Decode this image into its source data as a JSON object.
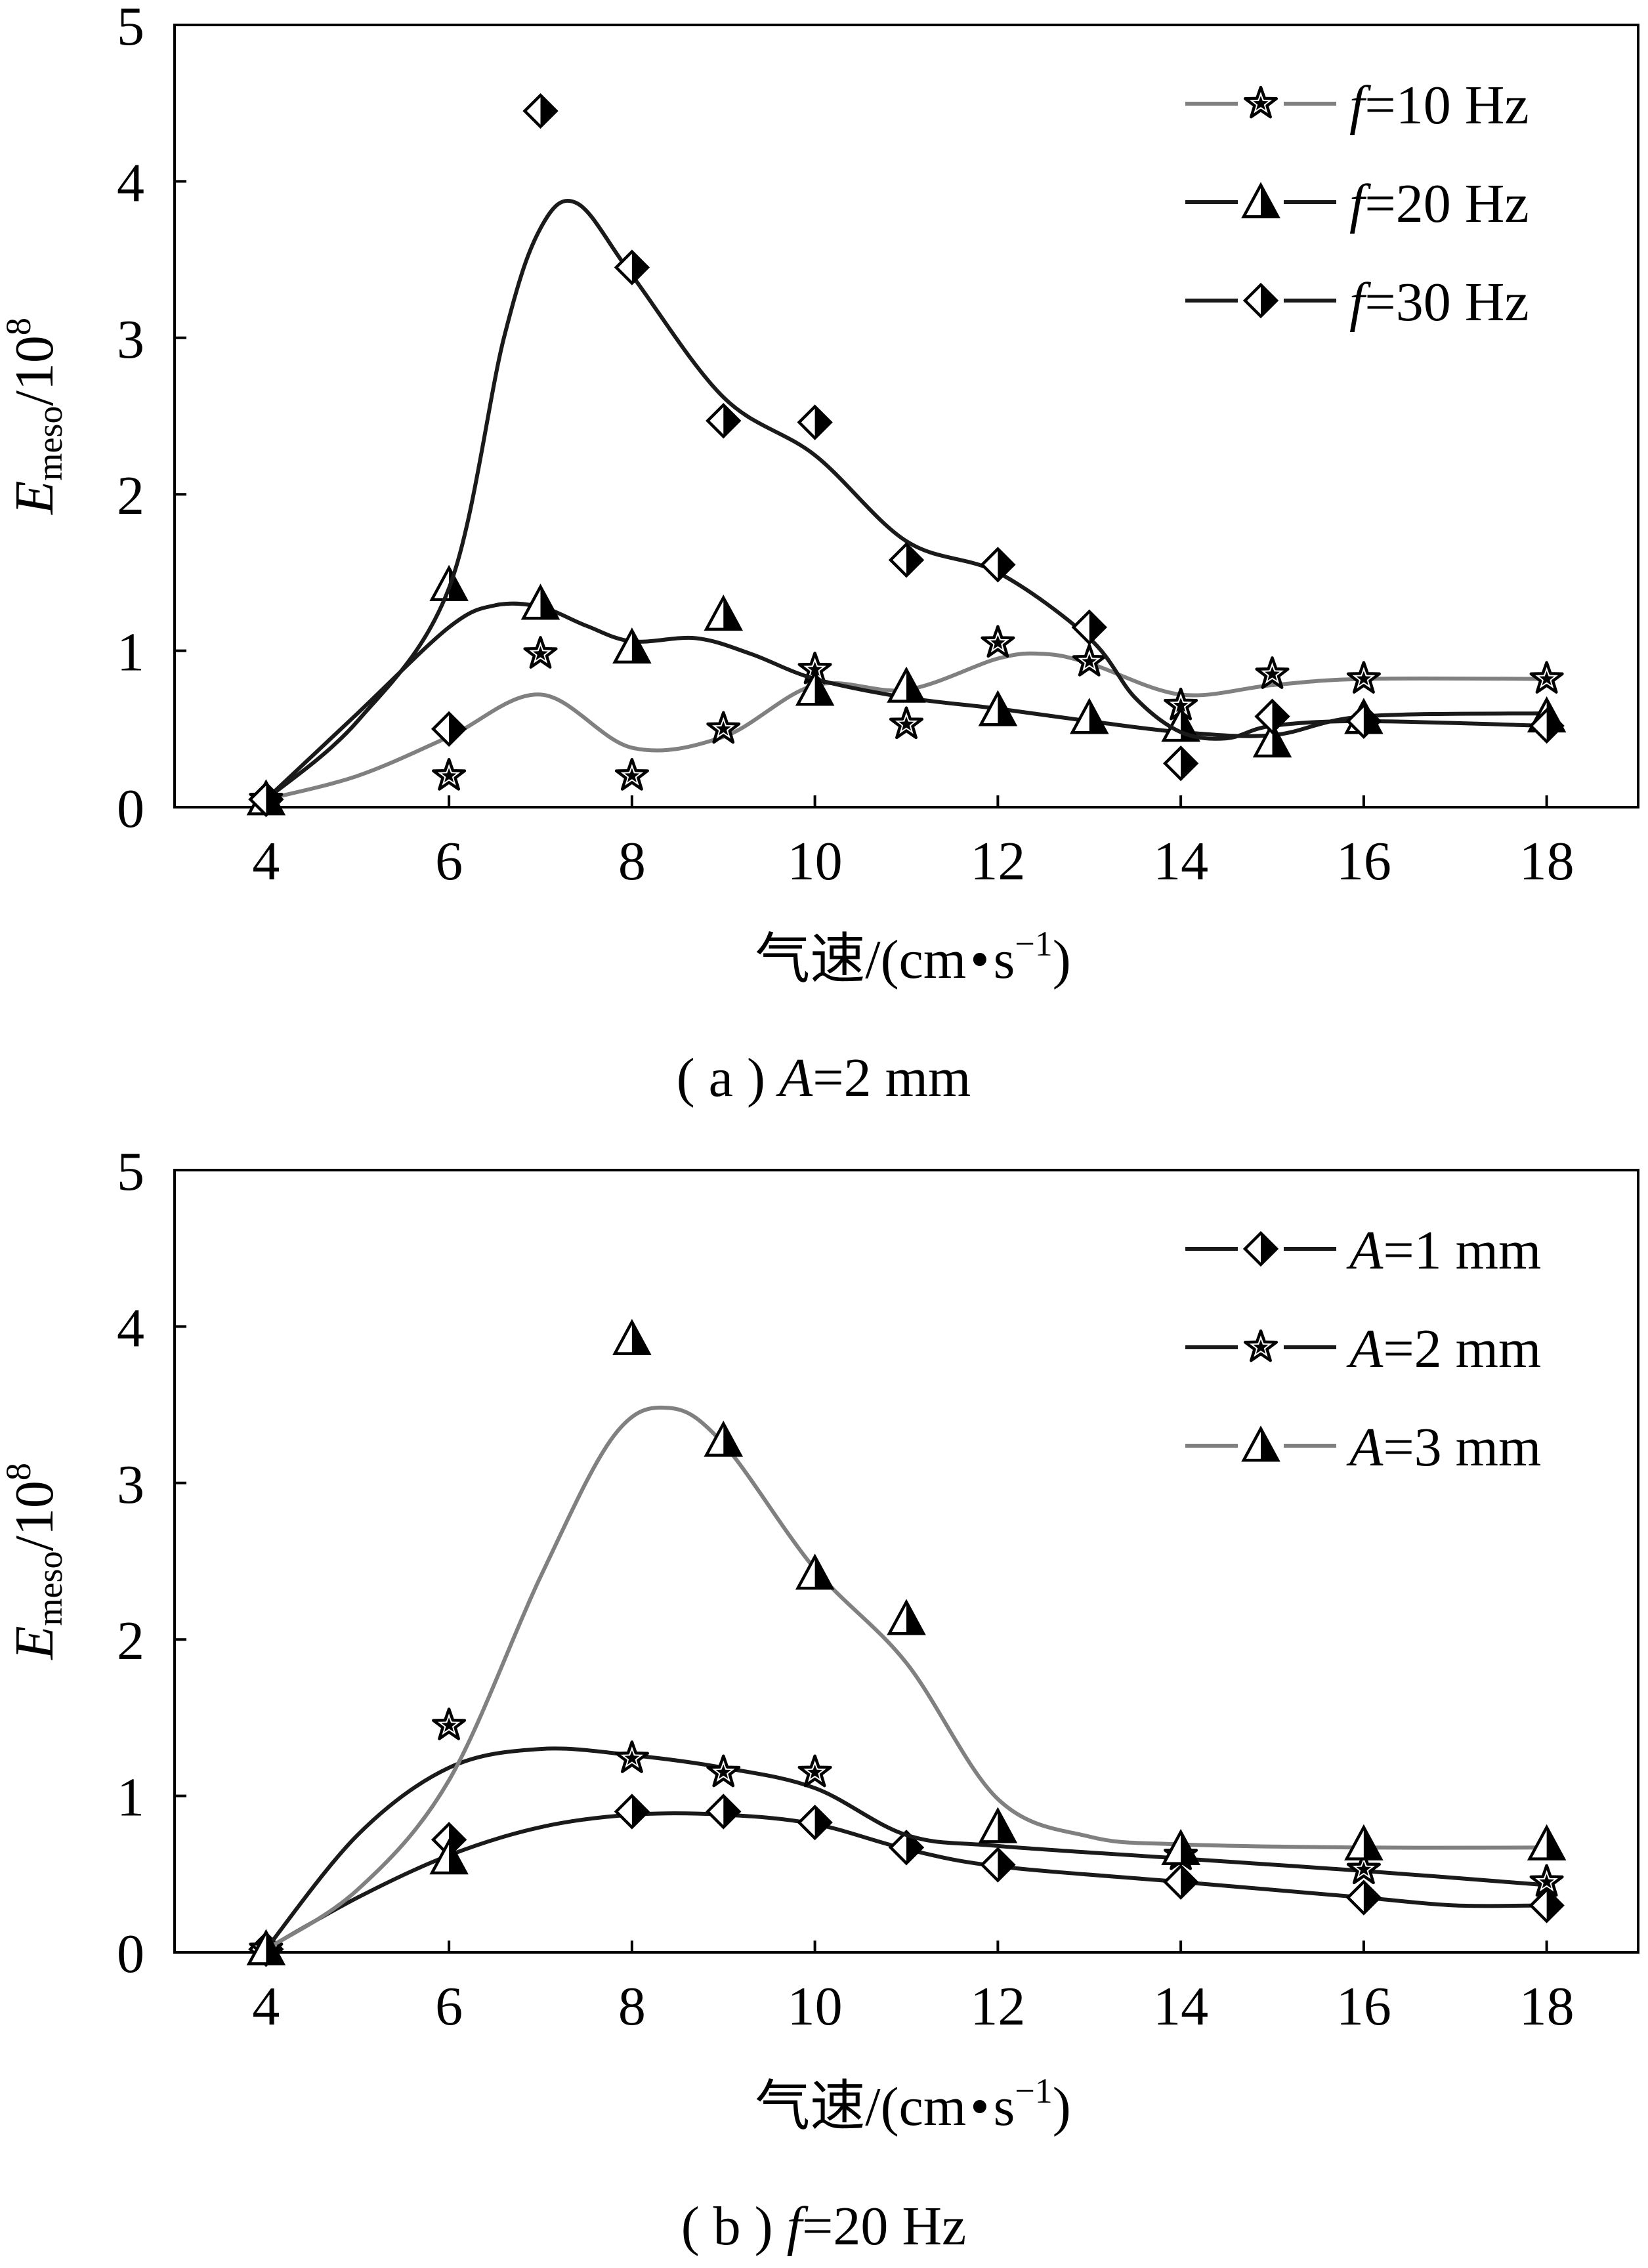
{
  "colors": {
    "black": "#1a1a1a",
    "gray": "#808080",
    "frame": "#000000"
  },
  "chart_data": [
    {
      "type": "scatter",
      "panel": "a",
      "caption": {
        "prefix": "( a )",
        "var": "A",
        "rest": "=2 mm"
      },
      "xlabel": {
        "main": "气速/(cm",
        "dot": "•",
        "s": "s",
        "sup": "−1",
        "close": ")"
      },
      "ylabel": {
        "E": "E",
        "sub": "meso",
        "base": "/10",
        "sup": "8"
      },
      "xlim": [
        3,
        19
      ],
      "ylim": [
        0,
        5
      ],
      "xticks": [
        "4",
        "6",
        "8",
        "10",
        "12",
        "14",
        "16",
        "18"
      ],
      "yticks": [
        "0",
        "1",
        "2",
        "3",
        "4",
        "5"
      ],
      "grid": false,
      "legend_position": "top-right",
      "series": [
        {
          "name_var": "f",
          "name_rest": "=10 Hz",
          "color": "gray",
          "marker": "star",
          "x": [
            4,
            6,
            7,
            8,
            9,
            10,
            11,
            12,
            13,
            14,
            15,
            16,
            18
          ],
          "y": [
            0.05,
            0.2,
            0.98,
            0.2,
            0.5,
            0.88,
            0.53,
            1.05,
            0.93,
            0.65,
            0.85,
            0.82,
            0.82
          ],
          "curve": [
            [
              4,
              0.05
            ],
            [
              5,
              0.2
            ],
            [
              6,
              0.45
            ],
            [
              7,
              0.72
            ],
            [
              8,
              0.38
            ],
            [
              9,
              0.45
            ],
            [
              10,
              0.78
            ],
            [
              11,
              0.75
            ],
            [
              12,
              0.95
            ],
            [
              12.5,
              0.98
            ],
            [
              13,
              0.92
            ],
            [
              14,
              0.72
            ],
            [
              15,
              0.78
            ],
            [
              16,
              0.82
            ],
            [
              18,
              0.82
            ]
          ]
        },
        {
          "name_var": "f",
          "name_rest": "=20 Hz",
          "color": "black",
          "marker": "triangle",
          "x": [
            4,
            6,
            7,
            8,
            9,
            10,
            11,
            12,
            13,
            14,
            15,
            16,
            18
          ],
          "y": [
            0.05,
            1.42,
            1.3,
            1.02,
            1.23,
            0.75,
            0.77,
            0.62,
            0.57,
            0.52,
            0.42,
            0.57,
            0.58
          ],
          "curve": [
            [
              4,
              0.05
            ],
            [
              5,
              0.6
            ],
            [
              6,
              1.15
            ],
            [
              6.5,
              1.29
            ],
            [
              7,
              1.28
            ],
            [
              7.5,
              1.16
            ],
            [
              8,
              1.06
            ],
            [
              8.7,
              1.08
            ],
            [
              9.3,
              0.98
            ],
            [
              10,
              0.82
            ],
            [
              11,
              0.7
            ],
            [
              12,
              0.63
            ],
            [
              13,
              0.55
            ],
            [
              14,
              0.48
            ],
            [
              15,
              0.46
            ],
            [
              16,
              0.58
            ],
            [
              18,
              0.6
            ]
          ]
        },
        {
          "name_var": "f",
          "name_rest": "=30 Hz",
          "color": "black",
          "marker": "diamond",
          "x": [
            4,
            6,
            7,
            8,
            9,
            10,
            11,
            12,
            13,
            14,
            15,
            16,
            18
          ],
          "y": [
            0.05,
            0.5,
            4.45,
            3.45,
            2.47,
            2.46,
            1.58,
            1.55,
            1.15,
            0.28,
            0.58,
            0.55,
            0.52
          ],
          "curve": [
            [
              4,
              0.05
            ],
            [
              5,
              0.55
            ],
            [
              6,
              1.4
            ],
            [
              6.6,
              3.0
            ],
            [
              7,
              3.7
            ],
            [
              7.4,
              3.86
            ],
            [
              8,
              3.4
            ],
            [
              9,
              2.62
            ],
            [
              10,
              2.25
            ],
            [
              11,
              1.7
            ],
            [
              12,
              1.5
            ],
            [
              13,
              1.08
            ],
            [
              13.5,
              0.7
            ],
            [
              14,
              0.48
            ],
            [
              14.5,
              0.44
            ],
            [
              15,
              0.52
            ],
            [
              16,
              0.55
            ],
            [
              18,
              0.52
            ]
          ]
        }
      ]
    },
    {
      "type": "scatter",
      "panel": "b",
      "caption": {
        "prefix": "( b )",
        "var": "f",
        "rest": "=20 Hz"
      },
      "xlabel": {
        "main": "气速/(cm",
        "dot": "•",
        "s": "s",
        "sup": "−1",
        "close": ")"
      },
      "ylabel": {
        "E": "E",
        "sub": "meso",
        "base": "/10",
        "sup": "8"
      },
      "xlim": [
        3,
        19
      ],
      "ylim": [
        0,
        5
      ],
      "xticks": [
        "4",
        "6",
        "8",
        "10",
        "12",
        "14",
        "16",
        "18"
      ],
      "yticks": [
        "0",
        "1",
        "2",
        "3",
        "4",
        "5"
      ],
      "grid": false,
      "legend_position": "top-right",
      "series": [
        {
          "name_var": "A",
          "name_rest": "=1 mm",
          "color": "black",
          "marker": "diamond",
          "x": [
            4,
            6,
            8,
            9,
            10,
            11,
            12,
            14,
            16,
            18
          ],
          "y": [
            0.02,
            0.72,
            0.9,
            0.9,
            0.83,
            0.67,
            0.56,
            0.45,
            0.35,
            0.3
          ],
          "curve": [
            [
              4,
              0.02
            ],
            [
              5,
              0.35
            ],
            [
              6,
              0.62
            ],
            [
              7,
              0.8
            ],
            [
              8,
              0.88
            ],
            [
              9,
              0.88
            ],
            [
              10,
              0.82
            ],
            [
              11,
              0.66
            ],
            [
              12,
              0.55
            ],
            [
              14,
              0.45
            ],
            [
              16,
              0.35
            ],
            [
              17,
              0.3
            ],
            [
              18,
              0.3
            ]
          ]
        },
        {
          "name_var": "A",
          "name_rest": "=2 mm",
          "color": "black",
          "marker": "star",
          "x": [
            4,
            6,
            8,
            9,
            10,
            14,
            16,
            18
          ],
          "y": [
            0.02,
            1.45,
            1.24,
            1.15,
            1.15,
            0.62,
            0.53,
            0.45
          ],
          "curve": [
            [
              4,
              0.02
            ],
            [
              5,
              0.75
            ],
            [
              6,
              1.18
            ],
            [
              7,
              1.3
            ],
            [
              8,
              1.26
            ],
            [
              9,
              1.18
            ],
            [
              10,
              1.05
            ],
            [
              11,
              0.75
            ],
            [
              12,
              0.68
            ],
            [
              14,
              0.6
            ],
            [
              16,
              0.52
            ],
            [
              18,
              0.43
            ]
          ]
        },
        {
          "name_var": "A",
          "name_rest": "=3 mm",
          "color": "gray",
          "marker": "triangle",
          "x": [
            4,
            6,
            8,
            9,
            10,
            11,
            12,
            14,
            16,
            18
          ],
          "y": [
            0.02,
            0.6,
            3.92,
            3.27,
            2.42,
            2.13,
            0.8,
            0.66,
            0.69,
            0.69
          ],
          "curve": [
            [
              4,
              0.02
            ],
            [
              5,
              0.4
            ],
            [
              6,
              1.1
            ],
            [
              7,
              2.4
            ],
            [
              7.8,
              3.3
            ],
            [
              8.4,
              3.48
            ],
            [
              9,
              3.25
            ],
            [
              10,
              2.45
            ],
            [
              11,
              1.85
            ],
            [
              12,
              0.98
            ],
            [
              13,
              0.74
            ],
            [
              14,
              0.69
            ],
            [
              16,
              0.67
            ],
            [
              18,
              0.67
            ]
          ]
        }
      ]
    }
  ]
}
